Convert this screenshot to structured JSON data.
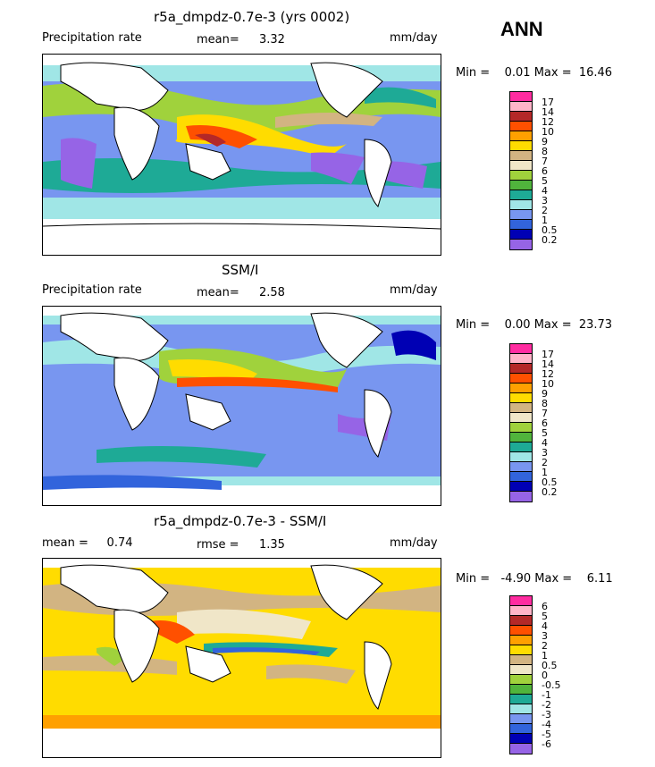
{
  "season": "ANN",
  "panels": [
    {
      "title": "r5a_dmpdz-0.7e-3 (yrs 0002)",
      "left_label": "Precipitation rate",
      "mid_label": "mean=",
      "mid_value": "3.32",
      "units": "mm/day",
      "minmax": "Min =    0.01 Max =  16.46",
      "levels": [
        "17",
        "14",
        "12",
        "10",
        "9",
        "8",
        "7",
        "6",
        "5",
        "4",
        "3",
        "2",
        "1",
        "0.5",
        "0.2"
      ],
      "colors": [
        "#ff2ca0",
        "#ffb4c8",
        "#b42828",
        "#ff5000",
        "#ffa000",
        "#ffdc00",
        "#d2b482",
        "#f0e6c8",
        "#a0d23c",
        "#50b43c",
        "#1eaa96",
        "#a0e6e6",
        "#7896f0",
        "#3264dc",
        "#0000b4",
        "#9664e6"
      ]
    },
    {
      "title": "SSM/I",
      "left_label": "Precipitation rate",
      "mid_label": "mean=",
      "mid_value": "2.58",
      "units": "mm/day",
      "minmax": "Min =    0.00 Max =  23.73",
      "levels": [
        "17",
        "14",
        "12",
        "10",
        "9",
        "8",
        "7",
        "6",
        "5",
        "4",
        "3",
        "2",
        "1",
        "0.5",
        "0.2"
      ],
      "colors": [
        "#ff2ca0",
        "#ffb4c8",
        "#b42828",
        "#ff5000",
        "#ffa000",
        "#ffdc00",
        "#d2b482",
        "#f0e6c8",
        "#a0d23c",
        "#50b43c",
        "#1eaa96",
        "#a0e6e6",
        "#7896f0",
        "#3264dc",
        "#0000b4",
        "#9664e6"
      ]
    },
    {
      "title": "r5a_dmpdz-0.7e-3 - SSM/I",
      "left_label": "mean =     0.74",
      "mid_label": "rmse =",
      "mid_value": "1.35",
      "units": "mm/day",
      "minmax": "Min =   -4.90 Max =    6.11",
      "levels": [
        "6",
        "5",
        "4",
        "3",
        "2",
        "1",
        "0.5",
        "0",
        "-0.5",
        "-1",
        "-2",
        "-3",
        "-4",
        "-5",
        "-6"
      ],
      "colors": [
        "#ff2ca0",
        "#ffb4c8",
        "#b42828",
        "#ff5000",
        "#ffa000",
        "#ffdc00",
        "#d2b482",
        "#f0e6c8",
        "#a0d23c",
        "#50b43c",
        "#1eaa96",
        "#a0e6e6",
        "#7896f0",
        "#3264dc",
        "#0000b4",
        "#9664e6"
      ]
    }
  ]
}
